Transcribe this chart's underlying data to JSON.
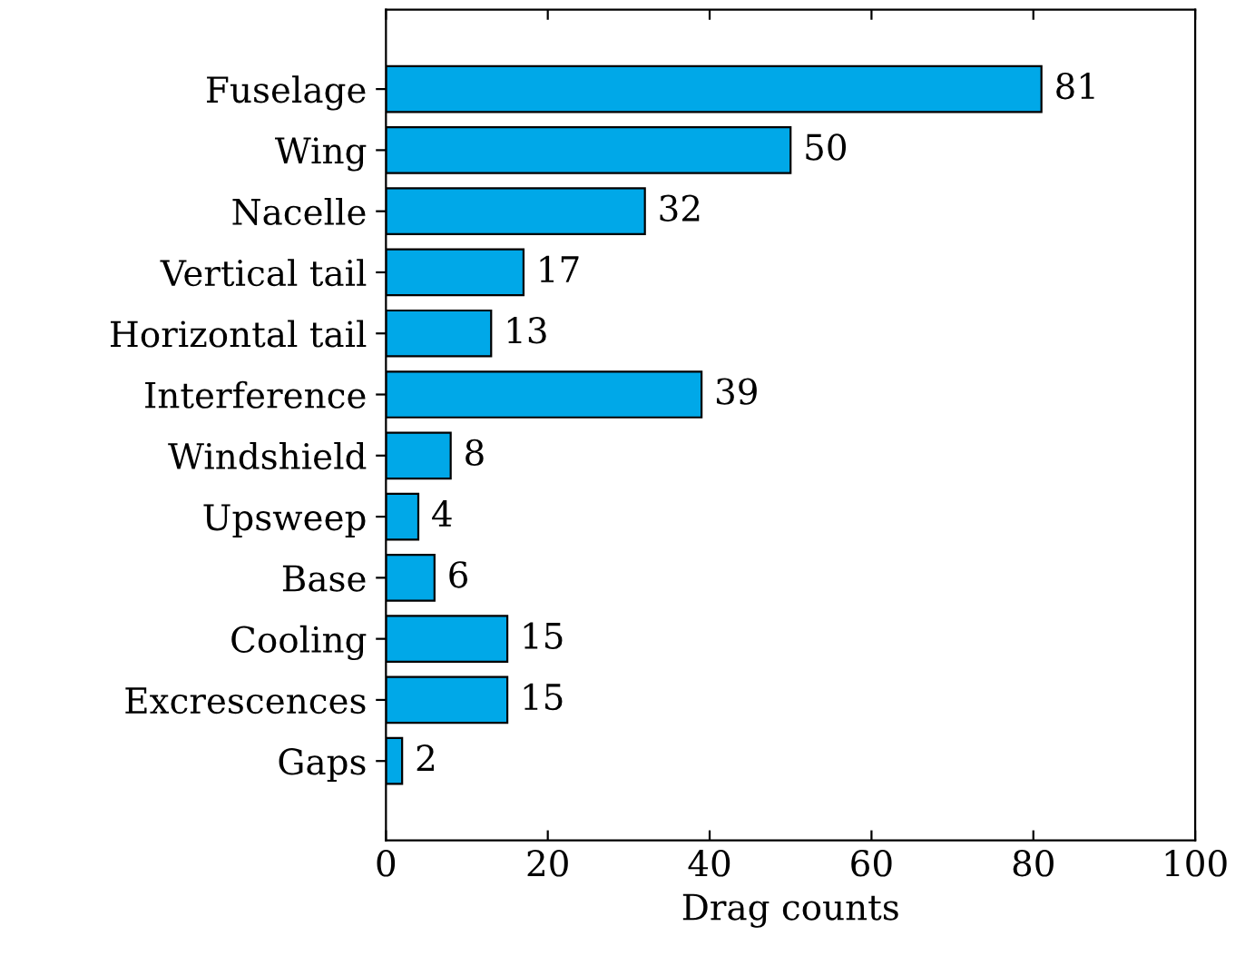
{
  "chart_data": {
    "type": "bar",
    "orientation": "horizontal",
    "xlabel": "Drag counts",
    "categories": [
      "Fuselage",
      "Wing",
      "Nacelle",
      "Vertical tail",
      "Horizontal tail",
      "Interference",
      "Windshield",
      "Upsweep",
      "Base",
      "Cooling",
      "Excrescences",
      "Gaps"
    ],
    "values": [
      81,
      50,
      32,
      17,
      13,
      39,
      8,
      4,
      6,
      15,
      15,
      2
    ],
    "color": "#00a8e8",
    "xlim": [
      0,
      100
    ],
    "xticks": [
      0,
      20,
      40,
      60,
      80,
      100
    ],
    "data_labels": true,
    "grid": false,
    "legend": false
  }
}
